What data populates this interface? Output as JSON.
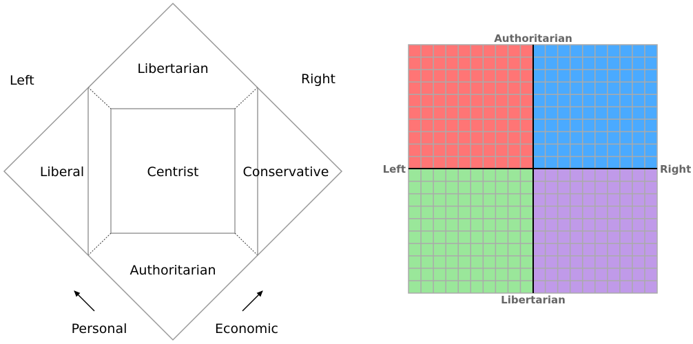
{
  "nolan_chart": {
    "regions": {
      "top": "Libertarian",
      "left": "Liberal",
      "center": "Centrist",
      "right": "Conservative",
      "bottom": "Authoritarian"
    },
    "corner_labels": {
      "top_left": "Left",
      "top_right": "Right"
    },
    "axes": {
      "personal": "Personal",
      "economic": "Economic"
    },
    "colors": {
      "outline": "#999999",
      "dashed": "#333333",
      "text": "#000000"
    }
  },
  "political_compass": {
    "labels": {
      "top": "Authoritarian",
      "bottom": "Libertarian",
      "left": "Left",
      "right": "Right"
    },
    "grid": {
      "cells_per_side": 20
    },
    "quadrants": {
      "top_left": "#ff7575",
      "top_right": "#4aaaff",
      "bottom_left": "#9ae79a",
      "bottom_right": "#c09ae9"
    },
    "colors": {
      "grid_line": "#aaaaaa",
      "axis": "#000000",
      "label": "#666666"
    }
  }
}
